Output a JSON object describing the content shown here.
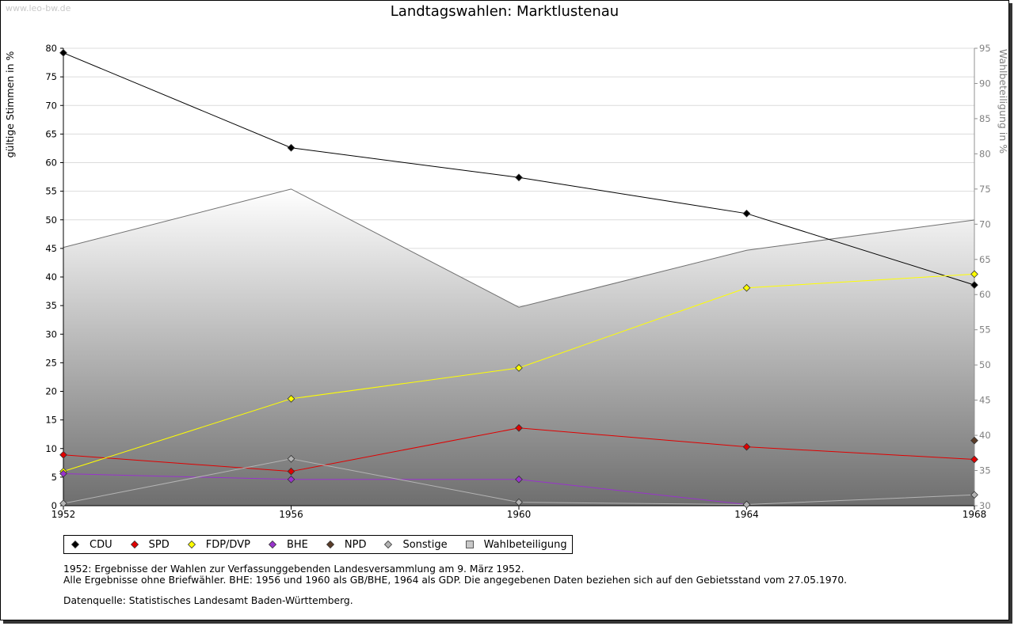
{
  "watermark": "www.leo-bw.de",
  "chart_data": {
    "type": "line",
    "title": "Landtagswahlen: Marktlustenau",
    "ylabel": "gültige Stimmen in %",
    "y2label": "Wahlbeteiligung in %",
    "x": [
      1952,
      1956,
      1960,
      1964,
      1968
    ],
    "ylim": [
      0,
      80
    ],
    "yticks": [
      0,
      5,
      10,
      15,
      20,
      25,
      30,
      35,
      40,
      45,
      50,
      55,
      60,
      65,
      70,
      75,
      80
    ],
    "y2lim": [
      30,
      95
    ],
    "y2ticks": [
      30,
      35,
      40,
      45,
      50,
      55,
      60,
      65,
      70,
      75,
      80,
      85,
      90,
      95
    ],
    "grid": true,
    "legend_position": "bottom",
    "series": [
      {
        "name": "CDU",
        "color": "#000000",
        "values": [
          79.2,
          62.6,
          57.4,
          51.1,
          38.6
        ]
      },
      {
        "name": "SPD",
        "color": "#e00000",
        "values": [
          8.9,
          6.0,
          13.6,
          10.3,
          8.1
        ]
      },
      {
        "name": "FDP/DVP",
        "color": "#ffff00",
        "values": [
          6.0,
          18.7,
          24.1,
          38.1,
          40.5
        ]
      },
      {
        "name": "BHE",
        "color": "#9933cc",
        "values": [
          5.6,
          4.6,
          4.6,
          0.2,
          null
        ]
      },
      {
        "name": "NPD",
        "color": "#5a3c28",
        "values": [
          null,
          null,
          null,
          null,
          11.4
        ]
      },
      {
        "name": "Sonstige",
        "color": "#b4b4b4",
        "values": [
          0.4,
          8.2,
          0.6,
          0.2,
          1.9
        ]
      },
      {
        "name": "Wahlbeteiligung",
        "color": "#c8c8c8",
        "axis": "right",
        "type": "area",
        "values": [
          66.7,
          75.0,
          58.2,
          66.3,
          70.6
        ]
      }
    ]
  },
  "legend": {
    "items": [
      {
        "label": "CDU",
        "color": "#000000",
        "shape": "diamond"
      },
      {
        "label": "SPD",
        "color": "#e00000",
        "shape": "diamond"
      },
      {
        "label": "FDP/DVP",
        "color": "#ffff00",
        "shape": "diamond"
      },
      {
        "label": "BHE",
        "color": "#9933cc",
        "shape": "diamond"
      },
      {
        "label": "NPD",
        "color": "#5a3c28",
        "shape": "diamond"
      },
      {
        "label": "Sonstige",
        "color": "#b4b4b4",
        "shape": "diamond"
      },
      {
        "label": "Wahlbeteiligung",
        "color": "#c8c8c8",
        "shape": "square"
      }
    ]
  },
  "notes": {
    "line1": "1952: Ergebnisse der Wahlen zur Verfassunggebenden Landesversammlung am 9. März 1952.",
    "line2": "Alle Ergebnisse ohne Briefwähler. BHE: 1956 und 1960 als GB/BHE, 1964 als GDP. Die angegebenen Daten beziehen sich auf den Gebietsstand vom 27.05.1970.",
    "source": "Datenquelle: Statistisches Landesamt Baden-Württemberg."
  }
}
